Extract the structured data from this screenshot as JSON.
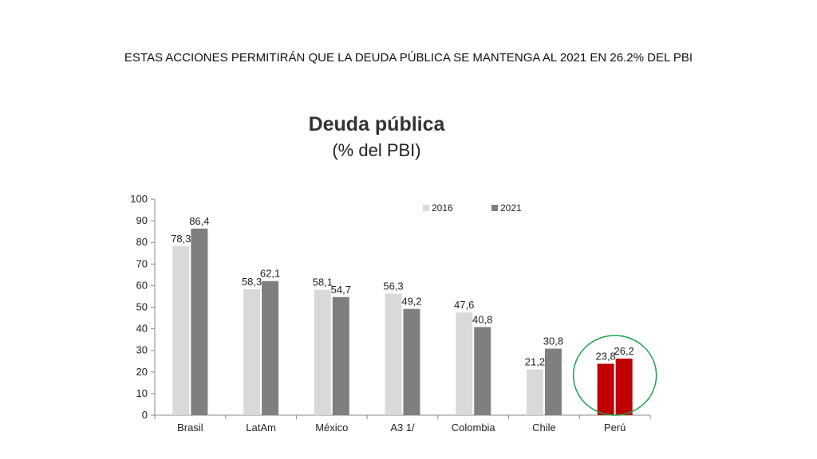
{
  "slide": {
    "title": "ESTAS ACCIONES PERMITIRÁN QUE LA DEUDA PÚBLICA SE MANTENGA AL 2021 EN 26.2% DEL PBI"
  },
  "chart_data": {
    "type": "bar",
    "title": "Deuda pública",
    "subtitle": "(% del PBI)",
    "categories": [
      "Brasil",
      "LatAm",
      "México",
      "A3 1/",
      "Colombia",
      "Chile",
      "Perú"
    ],
    "series": [
      {
        "name": "2016",
        "values": [
          78.3,
          58.3,
          58.1,
          56.3,
          47.6,
          21.2,
          23.8
        ],
        "labels": [
          "78,3",
          "58,3",
          "58,1",
          "56,3",
          "47,6",
          "21,2",
          "23,8"
        ]
      },
      {
        "name": "2021",
        "values": [
          86.4,
          62.1,
          54.7,
          49.2,
          40.8,
          30.8,
          26.2
        ],
        "labels": [
          "86,4",
          "62,1",
          "54,7",
          "49,2",
          "40,8",
          "30,8",
          "26,2"
        ]
      }
    ],
    "ylim": [
      0,
      100
    ],
    "yticks": [
      0,
      10,
      20,
      30,
      40,
      50,
      60,
      70,
      80,
      90,
      100
    ],
    "xlabel": "",
    "ylabel": "",
    "grid": false,
    "legend": "top-right",
    "colors": {
      "2016": "#d9d9d9",
      "2021": "#7f7f7f",
      "highlight": "#c00000",
      "circle": "#22a04b"
    },
    "highlight_category": "Perú"
  }
}
